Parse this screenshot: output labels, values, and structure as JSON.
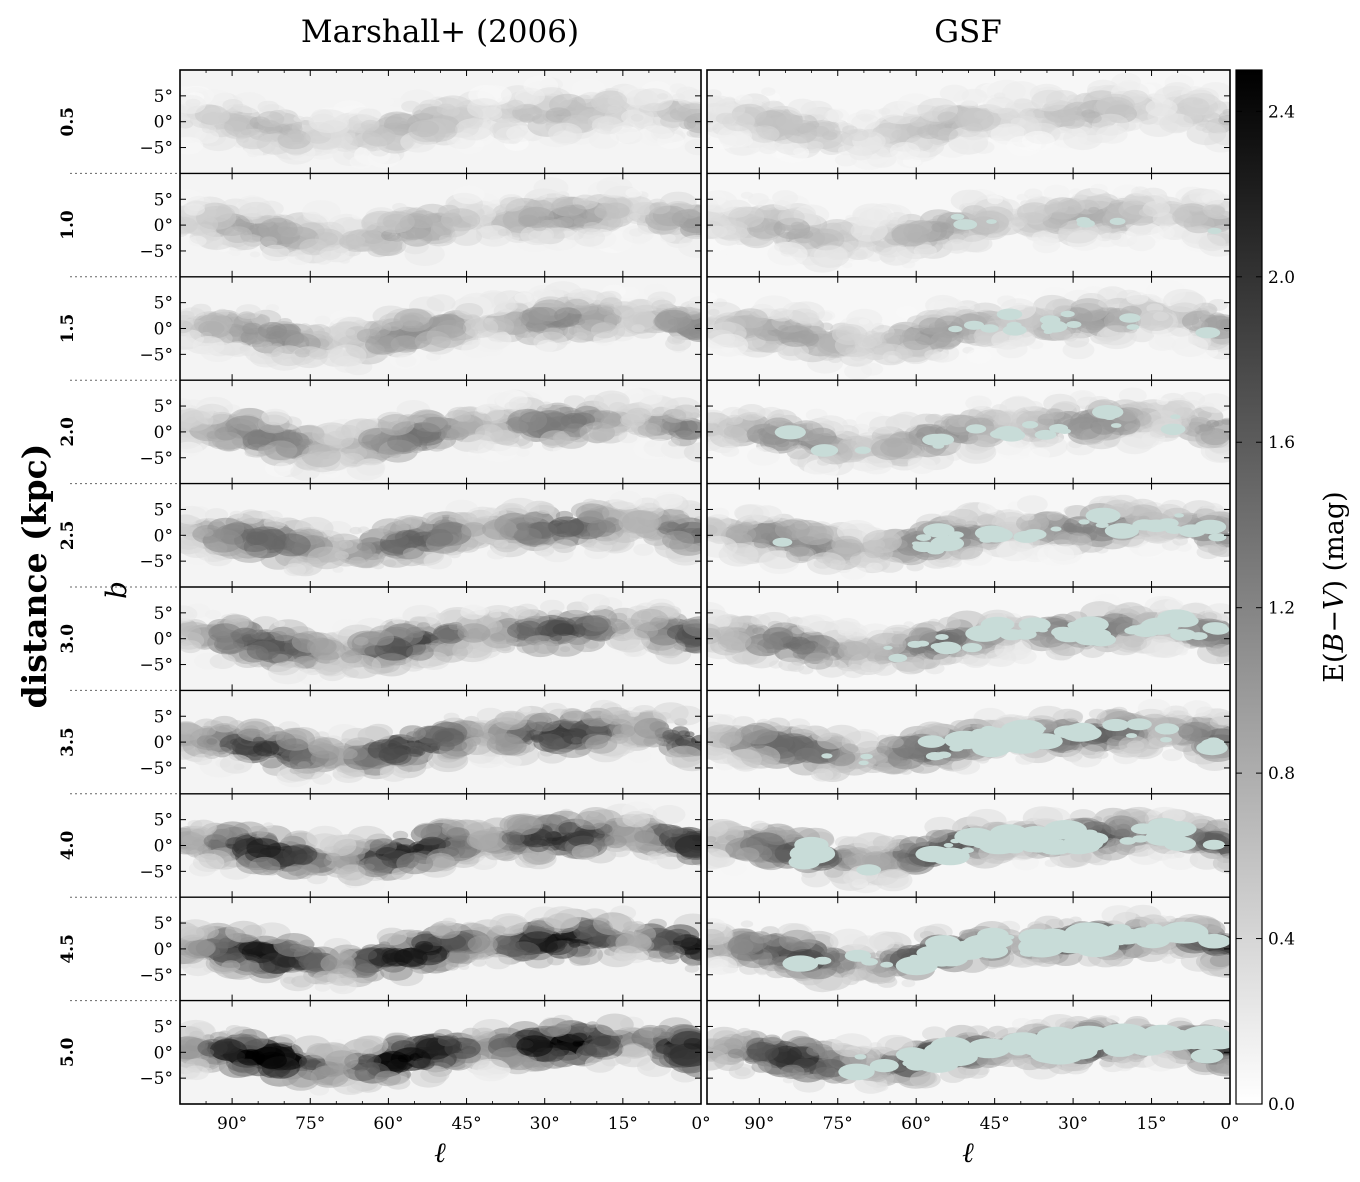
{
  "chart_data": {
    "type": "heatmap",
    "layout": "10 rows (distance) x 2 columns (map)",
    "columns": [
      "Marshall+ (2006)",
      "GSF"
    ],
    "row_axis_label": "distance (kpc)",
    "distances_kpc": [
      "0.5",
      "1.0",
      "1.5",
      "2.0",
      "2.5",
      "3.0",
      "3.5",
      "4.0",
      "4.5",
      "5.0"
    ],
    "x_axis": {
      "label": "ℓ",
      "range_deg": [
        100,
        0
      ],
      "reversed": true,
      "tick_values_deg": [
        90,
        75,
        60,
        45,
        30,
        15,
        0
      ],
      "tick_labels": [
        "90°",
        "75°",
        "60°",
        "45°",
        "30°",
        "15°",
        "0°"
      ]
    },
    "y_axis": {
      "label": "b",
      "range_deg": [
        -10,
        10
      ],
      "tick_values_deg": [
        5,
        0,
        -5
      ],
      "tick_labels": [
        "5°",
        "0°",
        "−5°"
      ]
    },
    "colorbar": {
      "label_prefix": "E(",
      "label_var1": "B",
      "label_minus": "−",
      "label_var2": "V",
      "label_suffix": ") (mag)",
      "range": [
        0.0,
        2.5
      ],
      "tick_values": [
        0.0,
        0.4,
        0.8,
        1.2,
        1.6,
        2.0,
        2.4
      ],
      "tick_labels": [
        "0.0",
        "0.4",
        "0.8",
        "1.2",
        "1.6",
        "2.0",
        "2.4"
      ],
      "colormap": "gray_r",
      "low_color": "#ffffff",
      "high_color": "#000000"
    },
    "masked_color": "#c8dcd8",
    "grid": false
  }
}
